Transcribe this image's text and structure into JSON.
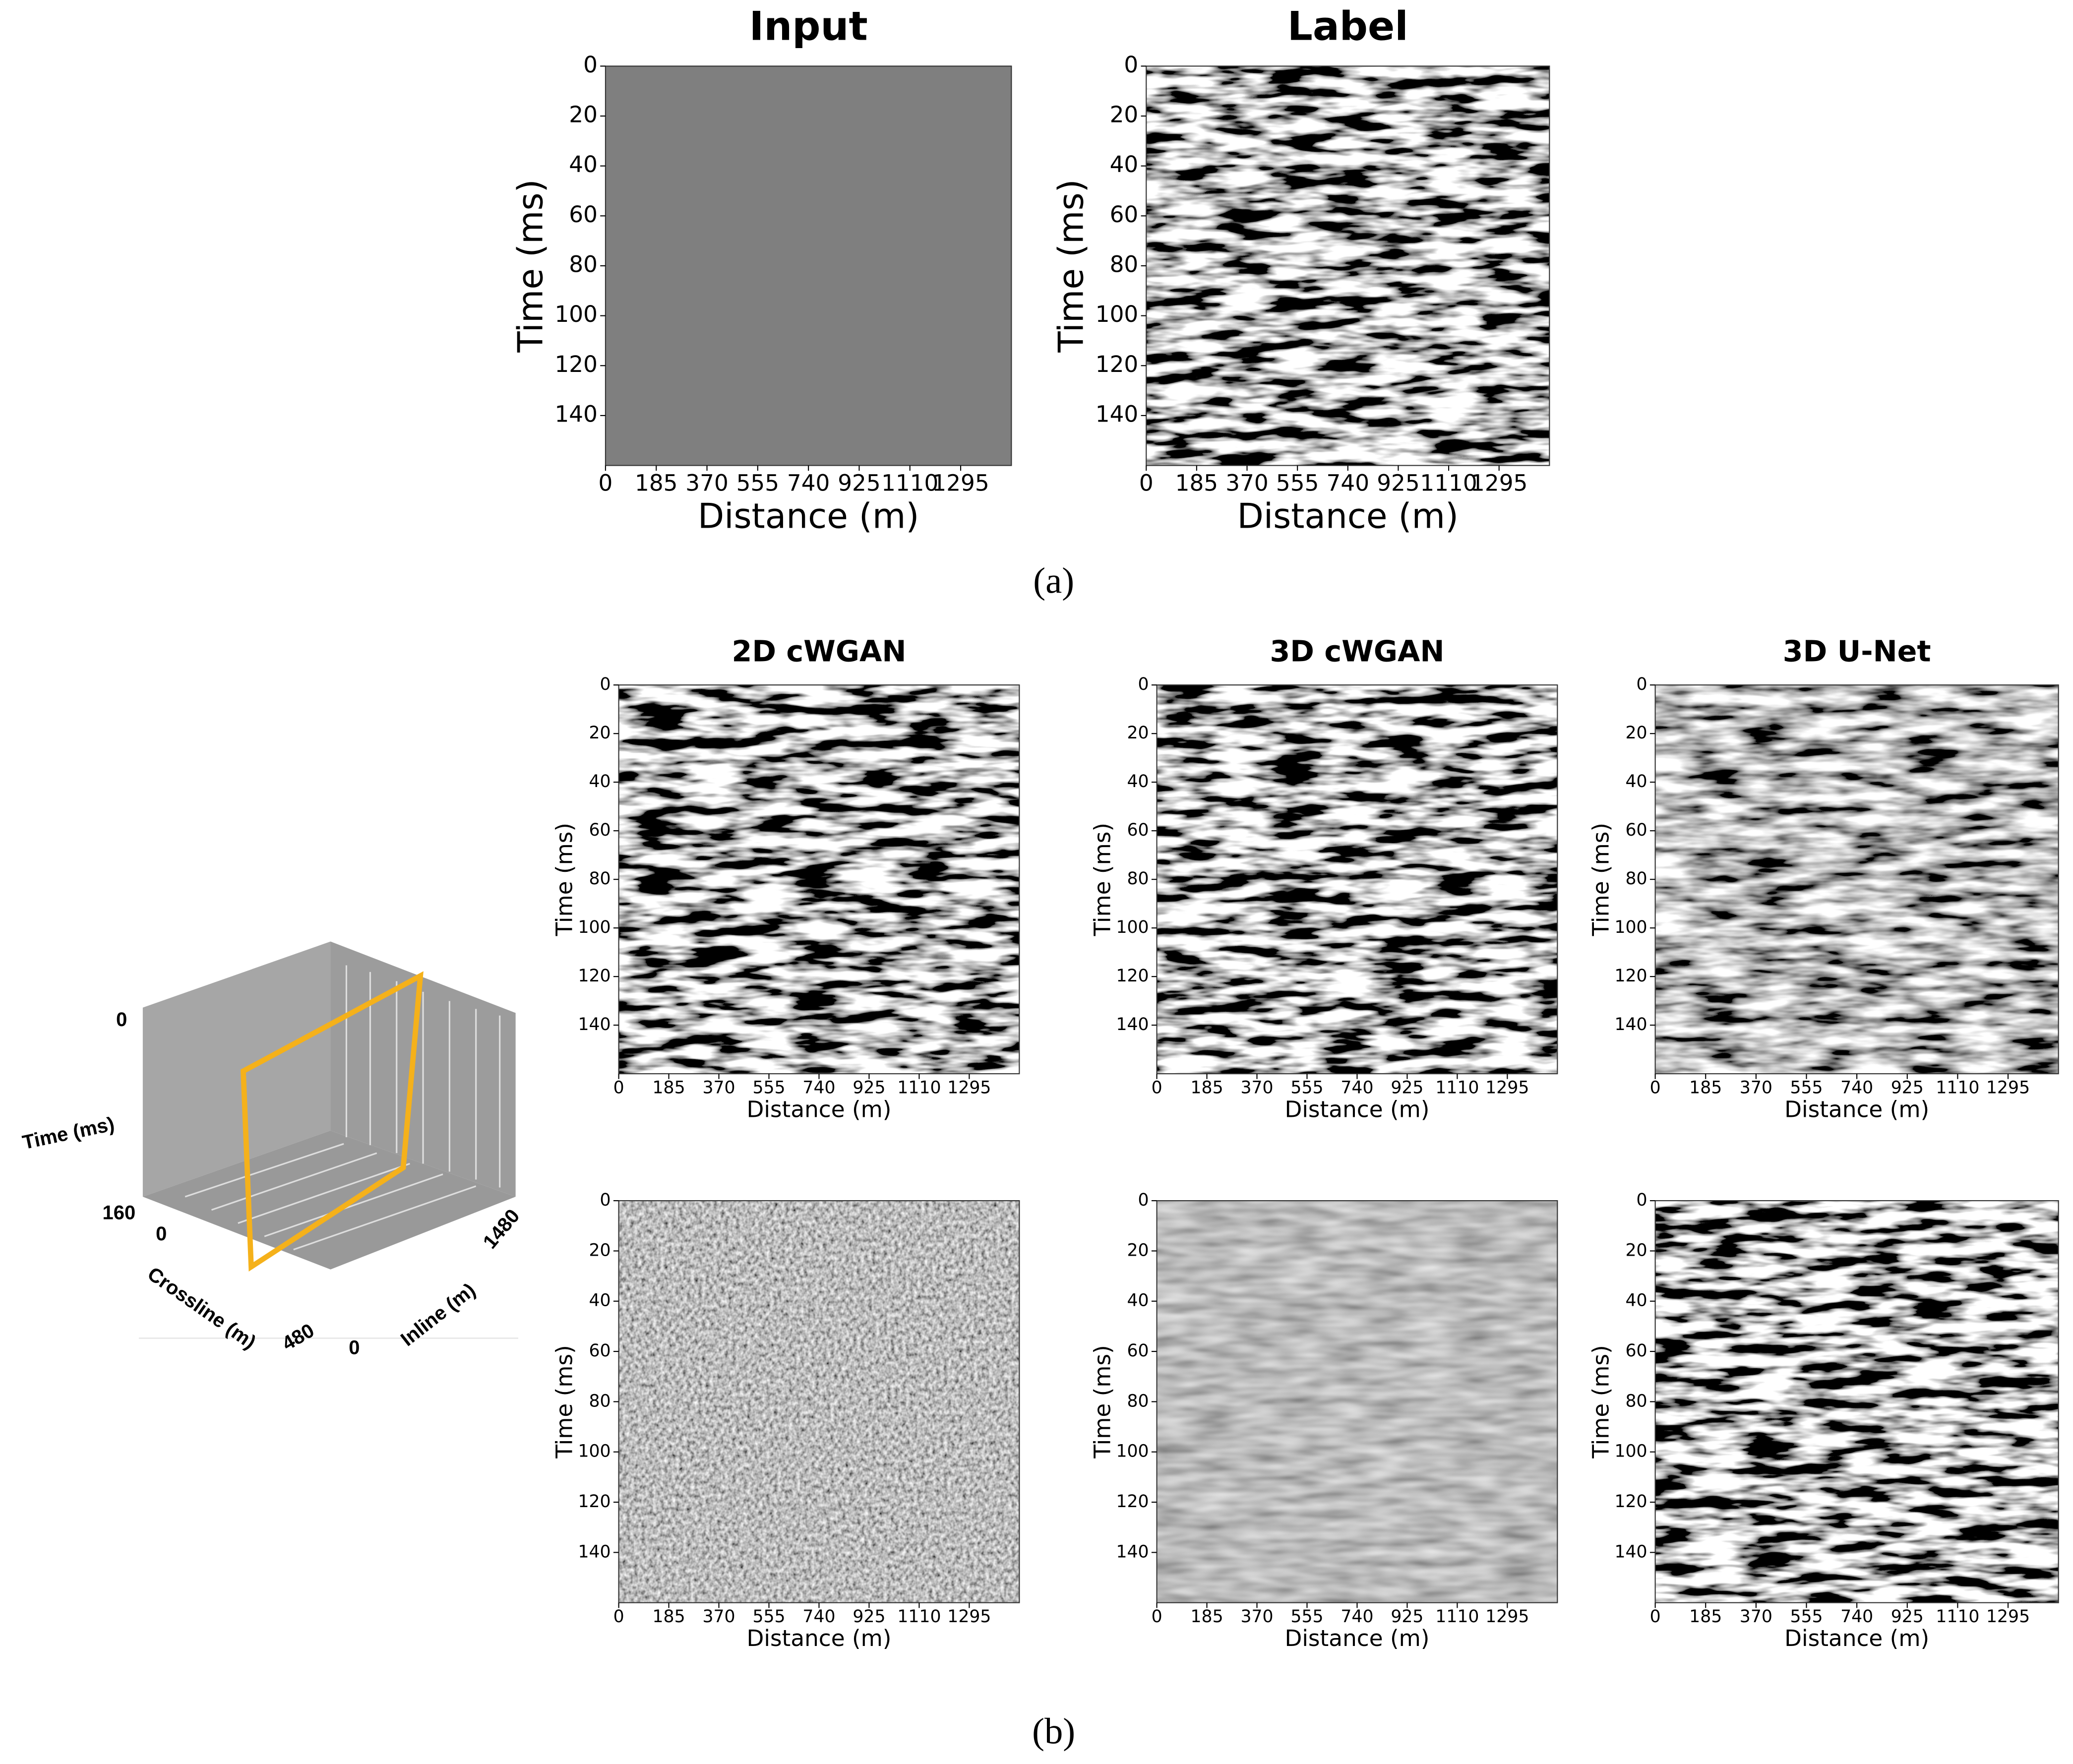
{
  "chart_data": [
    {
      "type": "heatmap",
      "title": "Input",
      "xlabel": "Distance (m)",
      "ylabel": "Time (ms)",
      "xlim": [
        0,
        1480
      ],
      "ylim": [
        0,
        160
      ],
      "xticks": [
        0,
        185,
        370,
        555,
        740,
        925,
        1110,
        1295
      ],
      "yticks": [
        0,
        20,
        40,
        60,
        80,
        100,
        120,
        140
      ]
    },
    {
      "type": "heatmap",
      "title": "Label",
      "xlabel": "Distance (m)",
      "ylabel": "Time (ms)",
      "xlim": [
        0,
        1480
      ],
      "ylim": [
        0,
        160
      ],
      "xticks": [
        0,
        185,
        370,
        555,
        740,
        925,
        1110,
        1295
      ],
      "yticks": [
        0,
        20,
        40,
        60,
        80,
        100,
        120,
        140
      ]
    },
    {
      "type": "heatmap",
      "title": "2D cWGAN",
      "xlabel": "Distance (m)",
      "ylabel": "Time (ms)",
      "xlim": [
        0,
        1480
      ],
      "ylim": [
        0,
        160
      ],
      "xticks": [
        0,
        185,
        370,
        555,
        740,
        925,
        1110,
        1295
      ],
      "yticks": [
        0,
        20,
        40,
        60,
        80,
        100,
        120,
        140
      ]
    },
    {
      "type": "heatmap",
      "title": "3D cWGAN",
      "xlabel": "Distance (m)",
      "ylabel": "Time (ms)",
      "xlim": [
        0,
        1480
      ],
      "ylim": [
        0,
        160
      ],
      "xticks": [
        0,
        185,
        370,
        555,
        740,
        925,
        1110,
        1295
      ],
      "yticks": [
        0,
        20,
        40,
        60,
        80,
        100,
        120,
        140
      ]
    },
    {
      "type": "heatmap",
      "title": "3D U-Net",
      "xlabel": "Distance (m)",
      "ylabel": "Time (ms)",
      "xlim": [
        0,
        1480
      ],
      "ylim": [
        0,
        160
      ],
      "xticks": [
        0,
        185,
        370,
        555,
        740,
        925,
        1110,
        1295
      ],
      "yticks": [
        0,
        20,
        40,
        60,
        80,
        100,
        120,
        140
      ]
    },
    {
      "type": "heatmap",
      "xlabel": "Distance (m)",
      "ylabel": "Time (ms)",
      "xlim": [
        0,
        1480
      ],
      "ylim": [
        0,
        160
      ],
      "xticks": [
        0,
        185,
        370,
        555,
        740,
        925,
        1110,
        1295
      ],
      "yticks": [
        0,
        20,
        40,
        60,
        80,
        100,
        120,
        140
      ]
    },
    {
      "type": "heatmap",
      "xlabel": "Distance (m)",
      "ylabel": "Time (ms)",
      "xlim": [
        0,
        1480
      ],
      "ylim": [
        0,
        160
      ],
      "xticks": [
        0,
        185,
        370,
        555,
        740,
        925,
        1110,
        1295
      ],
      "yticks": [
        0,
        20,
        40,
        60,
        80,
        100,
        120,
        140
      ]
    },
    {
      "type": "heatmap",
      "xlabel": "Distance (m)",
      "ylabel": "Time (ms)",
      "xlim": [
        0,
        1480
      ],
      "ylim": [
        0,
        160
      ],
      "xticks": [
        0,
        185,
        370,
        555,
        740,
        925,
        1110,
        1295
      ],
      "yticks": [
        0,
        20,
        40,
        60,
        80,
        100,
        120,
        140
      ]
    }
  ],
  "figure": {
    "captions": [
      "(a)",
      "(b)"
    ],
    "cube": {
      "time_label": "Time (ms)",
      "time_start": "0",
      "time_end": "160",
      "crossline_label": "Crossline (m)",
      "crossline_start": "0",
      "crossline_end": "480",
      "inline_label": "Inline (m)",
      "inline_start": "0",
      "inline_end": "1480"
    }
  }
}
